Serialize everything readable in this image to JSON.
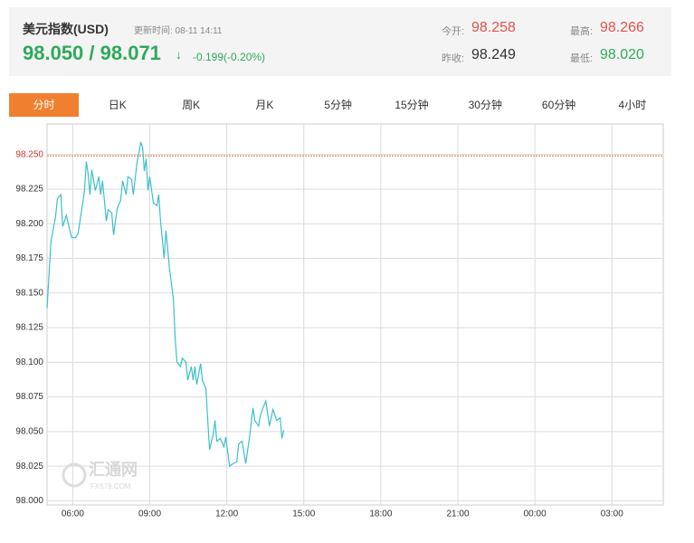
{
  "header": {
    "title": "美元指数(USD)",
    "update": "更新时间: 08-11 14:11",
    "price": "98.050 / 98.071",
    "arrow": "↓",
    "change": "-0.199(-0.20%)",
    "stats": [
      {
        "label": "今开:",
        "value": "98.258",
        "color": "#e4514b"
      },
      {
        "label": "昨收:",
        "value": "98.249",
        "color": "#333333"
      },
      {
        "label": "最高:",
        "value": "98.266",
        "color": "#e4514b"
      },
      {
        "label": "最低:",
        "value": "98.020",
        "color": "#2eaa5b"
      }
    ]
  },
  "tabs": [
    "分时",
    "日K",
    "周K",
    "月K",
    "5分钟",
    "15分钟",
    "30分钟",
    "60分钟",
    "4小时"
  ],
  "watermark": {
    "name": "汇通网",
    "site": "FX678.COM"
  },
  "chart_data": {
    "type": "line",
    "color": "#3cc0c8",
    "reference_line": 98.249,
    "reference_color": "#e8a070",
    "up_color": "#d03030",
    "xlim": [
      5,
      29
    ],
    "xticks": [
      {
        "value": 6,
        "label": "06:00"
      },
      {
        "value": 9,
        "label": "09:00"
      },
      {
        "value": 12,
        "label": "12:00"
      },
      {
        "value": 15,
        "label": "15:00"
      },
      {
        "value": 18,
        "label": "18:00"
      },
      {
        "value": 21,
        "label": "21:00"
      },
      {
        "value": 24,
        "label": "00:00"
      },
      {
        "value": 27,
        "label": "03:00"
      }
    ],
    "ylim": [
      97.997,
      98.272
    ],
    "yticks": [
      {
        "value": 98,
        "label": "98.000"
      },
      98.025,
      {
        "value": 98.05,
        "label": "98.050"
      },
      98.075,
      {
        "value": 98.1,
        "label": "98.100"
      },
      98.125,
      {
        "value": 98.15,
        "label": "98.150"
      },
      98.175,
      {
        "value": 98.2,
        "label": "98.200"
      },
      98.225,
      {
        "value": 98.25,
        "label": "98.250"
      }
    ],
    "grid": true,
    "x": [
      5.0,
      5.15,
      5.33,
      5.4,
      5.54,
      5.61,
      5.75,
      5.96,
      6.11,
      6.21,
      6.35,
      6.46,
      6.53,
      6.6,
      6.67,
      6.74,
      6.88,
      7.02,
      7.09,
      7.16,
      7.31,
      7.38,
      7.52,
      7.59,
      7.73,
      7.87,
      7.94,
      8.08,
      8.15,
      8.29,
      8.36,
      8.51,
      8.58,
      8.65,
      8.72,
      8.79,
      8.86,
      8.93,
      9.0,
      9.14,
      9.28,
      9.35,
      9.42,
      9.56,
      9.63,
      9.78,
      9.92,
      9.99,
      10.06,
      10.2,
      10.27,
      10.41,
      10.48,
      10.62,
      10.69,
      10.76,
      10.83,
      10.98,
      11.05,
      11.19,
      11.26,
      11.33,
      11.47,
      11.54,
      11.61,
      11.75,
      11.89,
      11.96,
      12.11,
      12.25,
      12.39,
      12.46,
      12.6,
      12.74,
      12.88,
      13.02,
      13.09,
      13.24,
      13.31,
      13.45,
      13.52,
      13.66,
      13.8,
      13.94,
      14.08,
      14.15,
      14.22
    ],
    "values": [
      98.139,
      98.187,
      98.205,
      98.218,
      98.221,
      98.198,
      98.206,
      98.19,
      98.19,
      98.193,
      98.21,
      98.224,
      98.245,
      98.236,
      98.221,
      98.239,
      98.224,
      98.234,
      98.221,
      98.231,
      98.202,
      98.21,
      98.208,
      98.192,
      98.211,
      98.217,
      98.231,
      98.221,
      98.234,
      98.232,
      98.221,
      98.245,
      98.251,
      98.259,
      98.255,
      98.238,
      98.247,
      98.224,
      98.234,
      98.215,
      98.213,
      98.221,
      98.202,
      98.175,
      98.195,
      98.166,
      98.146,
      98.117,
      98.1,
      98.097,
      98.103,
      98.1,
      98.087,
      98.097,
      98.087,
      98.097,
      98.084,
      98.099,
      98.087,
      98.081,
      98.058,
      98.037,
      98.048,
      98.058,
      98.043,
      98.045,
      98.039,
      98.046,
      98.025,
      98.027,
      98.028,
      98.041,
      98.043,
      98.027,
      98.045,
      98.067,
      98.058,
      98.054,
      98.062,
      98.069,
      98.072,
      98.054,
      98.066,
      98.058,
      98.06,
      98.045,
      98.051
    ]
  }
}
